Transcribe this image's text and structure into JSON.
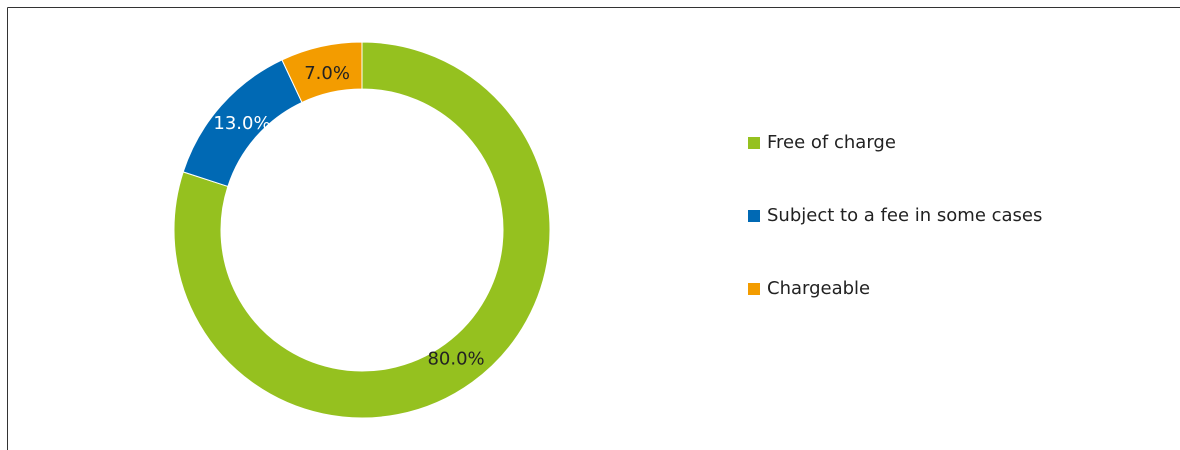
{
  "chart_data": {
    "type": "donut",
    "categories": [
      "Free of charge",
      "Subject to a fee in some cases",
      "Chargeable"
    ],
    "values": [
      80,
      13,
      7
    ],
    "value_labels": [
      "80.0%",
      "13.0%",
      "7.0%"
    ],
    "colors": [
      "#95c11f",
      "#0069b4",
      "#f39c00"
    ],
    "legend": "right"
  }
}
